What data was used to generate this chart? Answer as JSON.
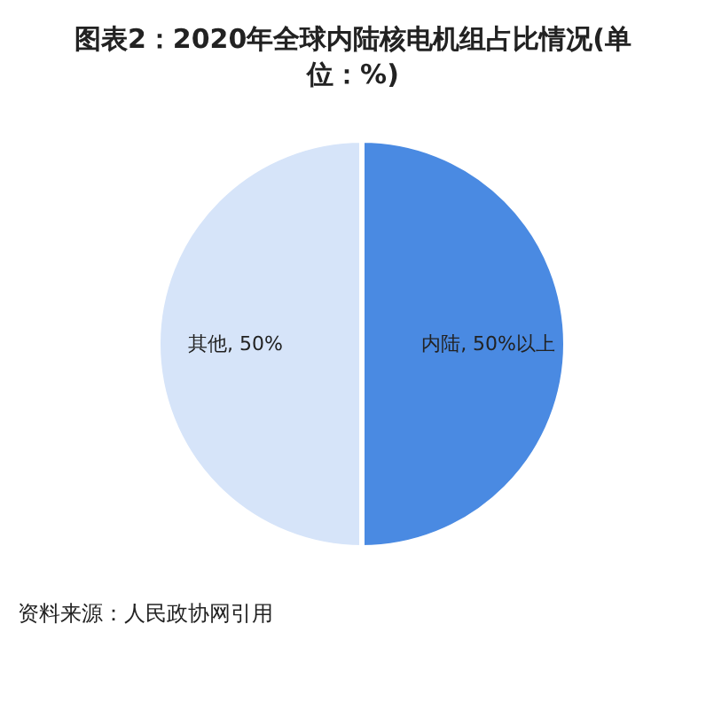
{
  "chart_data": {
    "type": "pie",
    "title": "图表2：2020年全球内陆核电机组占比情况(单位：%)",
    "categories": [
      "内陆",
      "其他"
    ],
    "values": [
      50,
      50
    ],
    "colors": [
      "#4a8ae2",
      "#d6e4f9"
    ],
    "value_labels": [
      "50%以上",
      "50%"
    ],
    "legend": false,
    "annotations": [
      "资料来源：人民政协网引用"
    ]
  }
}
